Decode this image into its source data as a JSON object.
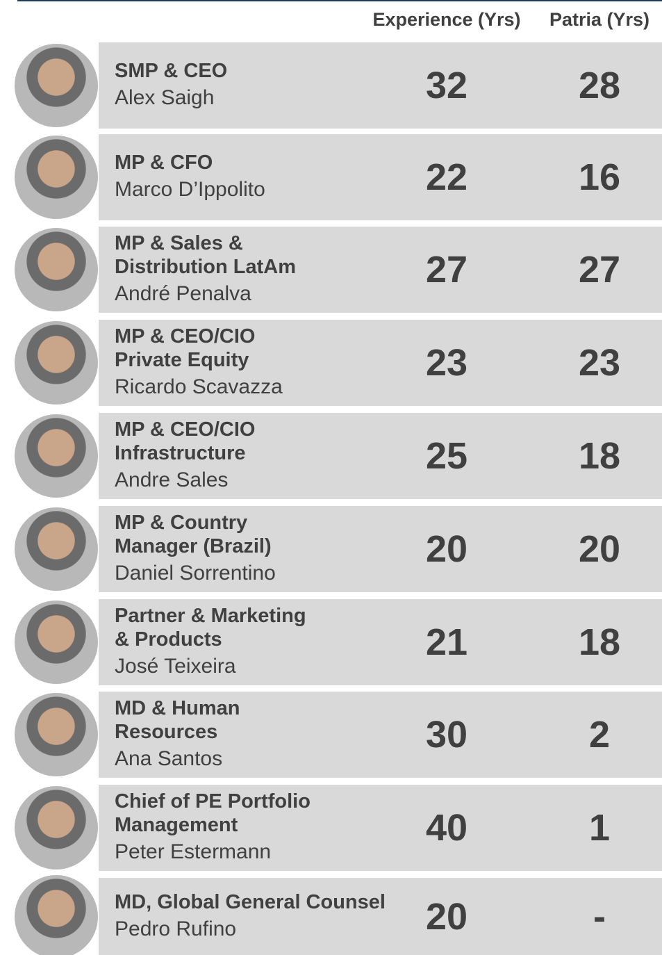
{
  "header": {
    "columns": [
      "Experience (Yrs)",
      "Patria (Yrs)"
    ]
  },
  "rows": [
    {
      "title_lines": [
        "SMP & CEO"
      ],
      "name": "Alex Saigh",
      "experience": 32,
      "patria": 28
    },
    {
      "title_lines": [
        "MP & CFO"
      ],
      "name": "Marco D’Ippolito",
      "experience": 22,
      "patria": 16
    },
    {
      "title_lines": [
        "MP & Sales &",
        "Distribution LatAm"
      ],
      "name": "André Penalva",
      "experience": 27,
      "patria": 27
    },
    {
      "title_lines": [
        "MP & CEO/CIO",
        "Private Equity"
      ],
      "name": "Ricardo Scavazza",
      "experience": 23,
      "patria": 23
    },
    {
      "title_lines": [
        "MP & CEO/CIO",
        "Infrastructure"
      ],
      "name": "Andre Sales",
      "experience": 25,
      "patria": 18
    },
    {
      "title_lines": [
        "MP & Country",
        "Manager (Brazil)"
      ],
      "name": "Daniel Sorrentino",
      "experience": 20,
      "patria": 20
    },
    {
      "title_lines": [
        "Partner & Marketing",
        "& Products"
      ],
      "name": "José Teixeira",
      "experience": 21,
      "patria": 18
    },
    {
      "title_lines": [
        "MD & Human",
        "Resources"
      ],
      "name": "Ana Santos",
      "experience": 30,
      "patria": 2
    },
    {
      "title_lines": [
        "Chief of PE Portfolio",
        "Management"
      ],
      "name": "Peter Estermann",
      "experience": 40,
      "patria": 1
    },
    {
      "title_lines": [
        "MD, Global General Counsel"
      ],
      "name": "Pedro Rufino",
      "experience": 20,
      "patria": "-"
    }
  ]
}
